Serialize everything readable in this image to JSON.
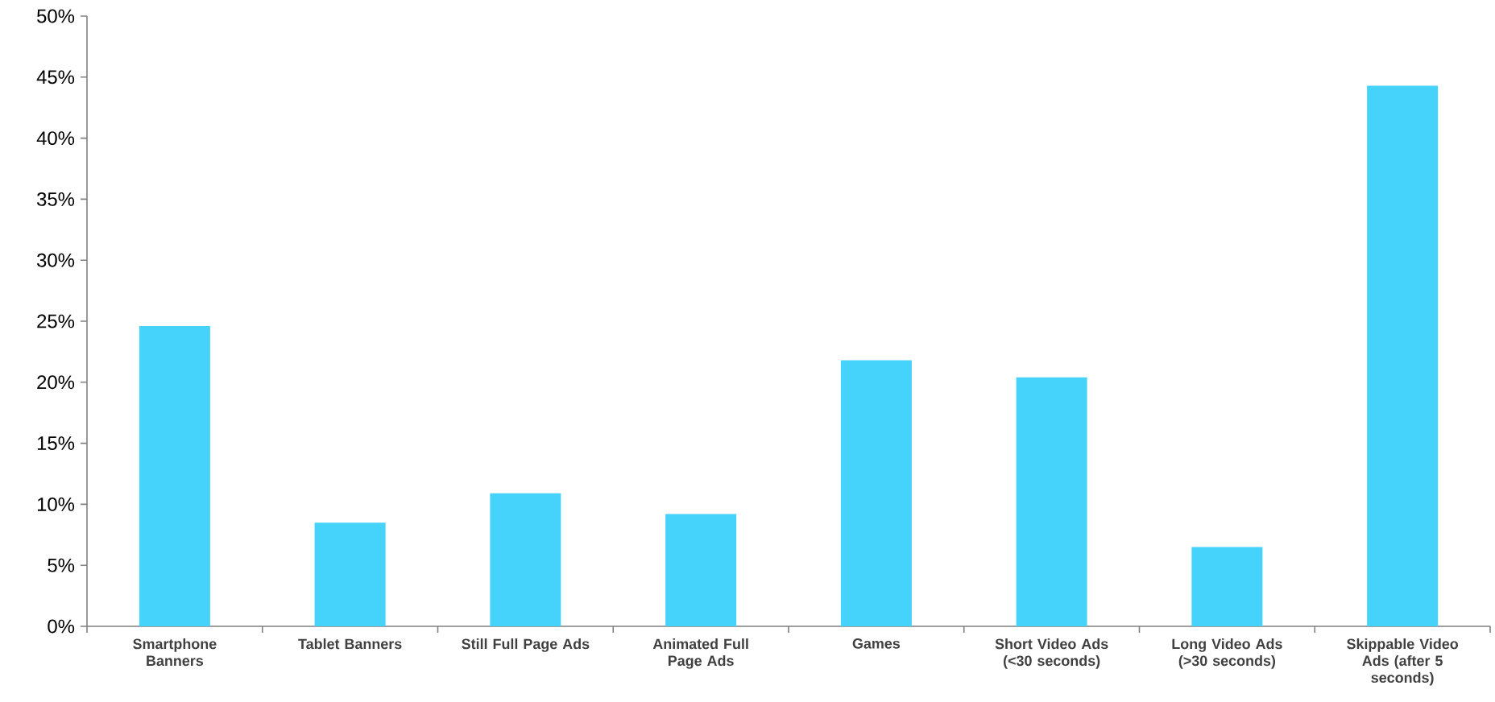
{
  "chart_data": {
    "type": "bar",
    "categories": [
      "Smartphone Banners",
      "Tablet Banners",
      "Still Full Page Ads",
      "Animated Full Page Ads",
      "Games",
      "Short Video Ads (<30 seconds)",
      "Long Video Ads (>30 seconds)",
      "Skippable Video Ads (after 5 seconds)"
    ],
    "values": [
      24.6,
      8.5,
      10.9,
      9.2,
      21.8,
      20.4,
      6.5,
      44.3
    ],
    "color": "#45d2fb",
    "ylim": [
      0,
      50
    ],
    "yticks": [
      {
        "value": 0,
        "label": "0%"
      },
      {
        "value": 5,
        "label": "5%"
      },
      {
        "value": 10,
        "label": "10%"
      },
      {
        "value": 15,
        "label": "15%"
      },
      {
        "value": 20,
        "label": "20%"
      },
      {
        "value": 25,
        "label": "25%"
      },
      {
        "value": 30,
        "label": "30%"
      },
      {
        "value": 35,
        "label": "35%"
      },
      {
        "value": 40,
        "label": "40%"
      },
      {
        "value": 45,
        "label": "45%"
      },
      {
        "value": 50,
        "label": "50%"
      }
    ],
    "grid": false
  }
}
